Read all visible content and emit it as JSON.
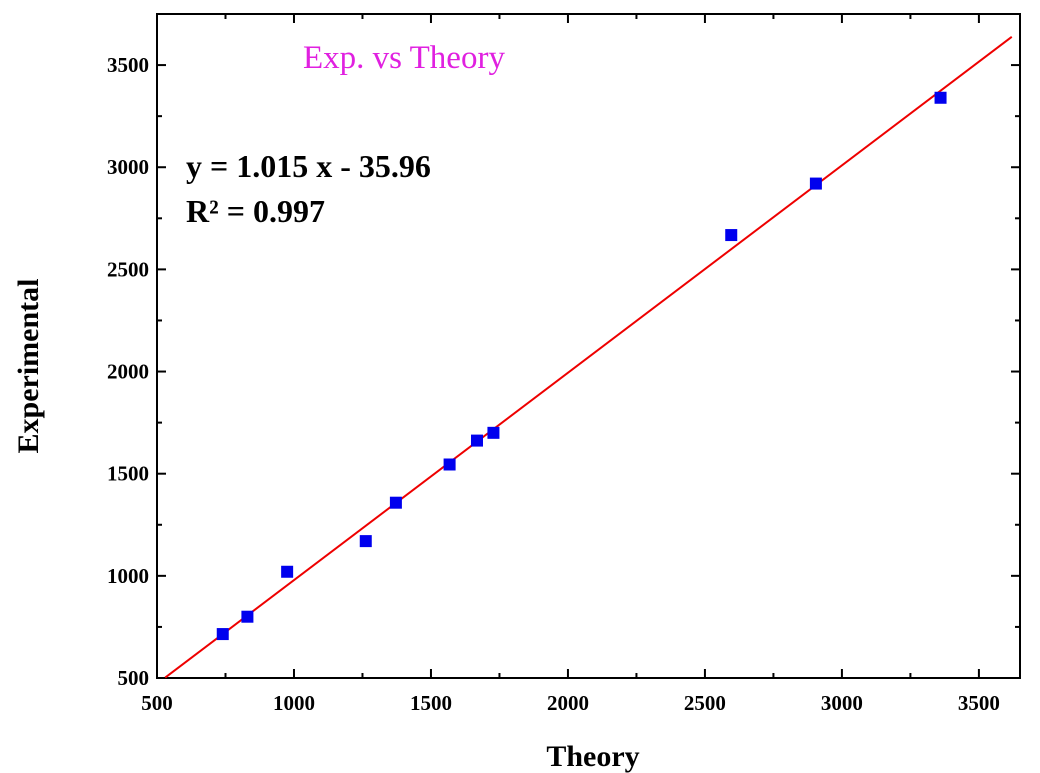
{
  "chart_data": {
    "type": "scatter",
    "title": "Exp. vs Theory",
    "title_color": "#e020e0",
    "xlabel": "Theory",
    "ylabel": "Experimental",
    "xlim": [
      500,
      3650
    ],
    "ylim": [
      500,
      3750
    ],
    "xticks": [
      500,
      1000,
      1500,
      2000,
      2500,
      3000,
      3500
    ],
    "yticks": [
      500,
      1000,
      1500,
      2000,
      2500,
      3000,
      3500
    ],
    "grid": false,
    "marker": "square",
    "marker_color": "#0000ee",
    "x": [
      740,
      830,
      975,
      1262,
      1372,
      1568,
      1668,
      1728,
      2596,
      2905,
      3360
    ],
    "y": [
      715,
      800,
      1020,
      1170,
      1358,
      1545,
      1662,
      1700,
      2668,
      2920,
      3340
    ],
    "fit": {
      "slope": 1.015,
      "intercept": -35.96,
      "color": "#ee0000",
      "x_range": [
        530,
        3620
      ]
    },
    "annotations": {
      "equation": "y = 1.015 x - 35.96",
      "r_squared": "R² = 0.997"
    }
  }
}
